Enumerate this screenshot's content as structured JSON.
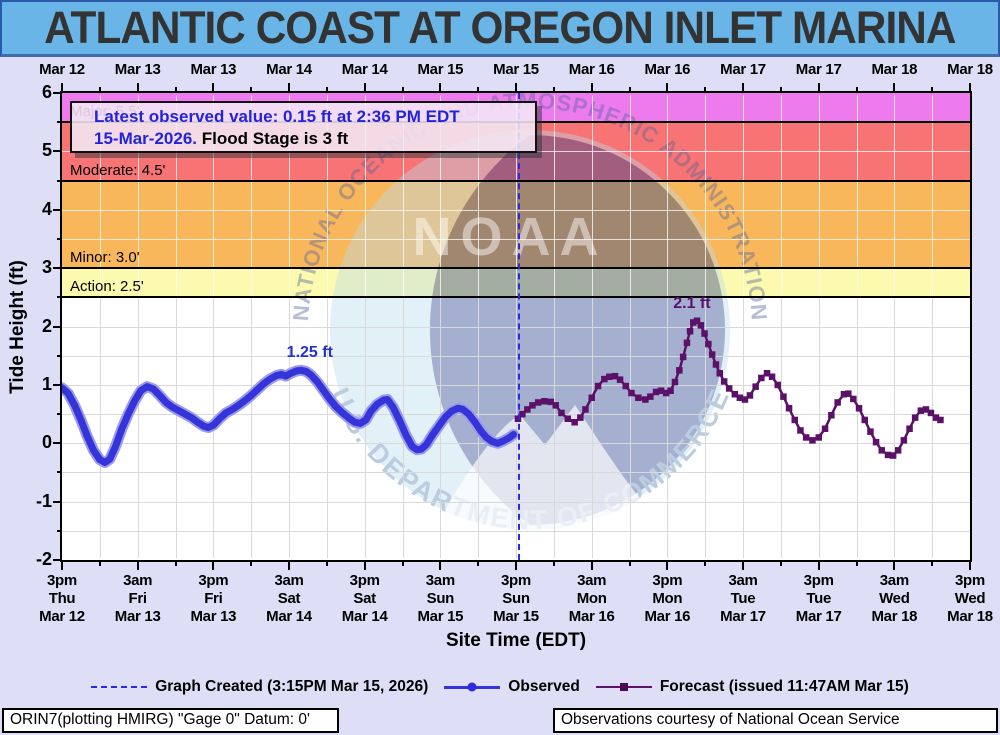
{
  "title": "ATLANTIC COAST AT OREGON INLET MARINA",
  "info_box": {
    "line1": "Latest observed value: 0.15 ft at 2:36 PM EDT",
    "line2_date": "15-Mar-2026.",
    "line2_stage": "Flood Stage is 3 ft"
  },
  "y_axis": {
    "label": "Tide Height (ft)",
    "min": -2,
    "max": 6,
    "ticks": [
      6,
      5,
      4,
      3,
      2,
      1,
      0,
      -1,
      -2
    ]
  },
  "x_axis": {
    "label": "Site Time (EDT)",
    "top_labels": [
      "Mar 12",
      "Mar 13",
      "Mar 13",
      "Mar 14",
      "Mar 14",
      "Mar 15",
      "Mar 15",
      "Mar 16",
      "Mar 16",
      "Mar 17",
      "Mar 17",
      "Mar 18",
      "Mar 18"
    ],
    "bottom_labels": [
      [
        "3pm",
        "Thu",
        "Mar 12"
      ],
      [
        "3am",
        "Fri",
        "Mar 13"
      ],
      [
        "3pm",
        "Fri",
        "Mar 13"
      ],
      [
        "3am",
        "Sat",
        "Mar 14"
      ],
      [
        "3pm",
        "Sat",
        "Mar 14"
      ],
      [
        "3am",
        "Sun",
        "Mar 15"
      ],
      [
        "3pm",
        "Sun",
        "Mar 15"
      ],
      [
        "3am",
        "Mon",
        "Mar 16"
      ],
      [
        "3pm",
        "Mon",
        "Mar 16"
      ],
      [
        "3am",
        "Tue",
        "Mar 17"
      ],
      [
        "3pm",
        "Tue",
        "Mar 17"
      ],
      [
        "3am",
        "Wed",
        "Mar 18"
      ],
      [
        "3pm",
        "Wed",
        "Mar 18"
      ]
    ]
  },
  "flood_bands": [
    {
      "name": "Major",
      "label": "Major: 5.5'",
      "from_ft": 5.5,
      "to_ft": 6.0,
      "color": "#EE7BEE"
    },
    {
      "name": "Moderate",
      "label": "Moderate: 4.5'",
      "from_ft": 4.5,
      "to_ft": 5.5,
      "color": "#F87373"
    },
    {
      "name": "Minor",
      "label": "Minor: 3.0'",
      "from_ft": 3.0,
      "to_ft": 4.5,
      "color": "#F9B75B"
    },
    {
      "name": "Action",
      "label": "Action: 2.5'",
      "from_ft": 2.5,
      "to_ft": 3.0,
      "color": "#FBFAAE"
    }
  ],
  "legend": {
    "items": [
      {
        "type": "created",
        "label": "Graph Created (3:15PM Mar 15, 2026)"
      },
      {
        "type": "observed",
        "label": "Observed"
      },
      {
        "type": "forecast",
        "label": "Forecast (issued 11:47AM Mar 15)"
      }
    ]
  },
  "footer": {
    "left": "ORIN7(plotting HMIRG) \"Gage 0\" Datum: 0'",
    "right": "Observations courtesy of National Ocean Service"
  },
  "watermark": {
    "top_text": "NATIONAL OCEANIC AND ATMOSPHERIC ADMINISTRATION",
    "bottom_text": "U.S. DEPARTMENT OF COMMERCE",
    "center_text": "NOAA"
  },
  "colors": {
    "page_bg": "#DEDEF6",
    "titlebar_bg": "#69B5E7",
    "titlebar_border": "#2B5BA8",
    "observed": "#3434D8",
    "observed_halo": "#9B9BEC",
    "forecast": "#5B1168",
    "created_line": "#2929E8",
    "grid_on_bands": "rgba(255,255,255,0.75)",
    "grid_on_white": "#D9D9D9",
    "info_text_blue": "#2323DC"
  },
  "chart_data": {
    "type": "line",
    "title": "ATLANTIC COAST AT OREGON INLET MARINA",
    "xlabel": "Site Time (EDT)",
    "ylabel": "Tide Height (ft)",
    "ylim": [
      -2,
      6
    ],
    "x_unit": "hours since 3pm EDT Thu Mar 12, 2026",
    "x_range_hours": [
      0,
      144
    ],
    "grid": true,
    "flood_stages": {
      "action": 2.5,
      "minor": 3.0,
      "moderate": 4.5,
      "major": 5.5
    },
    "flood_stage_note": "Flood Stage is 3 ft",
    "latest_observed": {
      "value_ft": 0.15,
      "time": "2:36 PM EDT 15-Mar-2026"
    },
    "created_line_t": 72.25,
    "annotations": [
      {
        "text": "1.25 ft",
        "t": 39.3,
        "v": 1.25,
        "color": "#2233CC"
      },
      {
        "text": "2.1 ft",
        "t": 99.9,
        "v": 2.1,
        "color": "#5A1070"
      }
    ],
    "series": [
      {
        "name": "Observed",
        "color": "#3434D8",
        "marker": "circle",
        "points": [
          [
            0,
            0.95
          ],
          [
            1,
            0.85
          ],
          [
            2,
            0.65
          ],
          [
            3,
            0.4
          ],
          [
            4,
            0.12
          ],
          [
            5,
            -0.12
          ],
          [
            6,
            -0.28
          ],
          [
            6.8,
            -0.33
          ],
          [
            7.6,
            -0.27
          ],
          [
            8.5,
            -0.05
          ],
          [
            9.5,
            0.25
          ],
          [
            10.5,
            0.5
          ],
          [
            11.5,
            0.72
          ],
          [
            12.5,
            0.9
          ],
          [
            13.5,
            0.97
          ],
          [
            14.5,
            0.93
          ],
          [
            15.5,
            0.82
          ],
          [
            16.5,
            0.7
          ],
          [
            17.5,
            0.62
          ],
          [
            18.5,
            0.56
          ],
          [
            19.5,
            0.5
          ],
          [
            20.5,
            0.44
          ],
          [
            21.5,
            0.36
          ],
          [
            22.5,
            0.29
          ],
          [
            23.2,
            0.27
          ],
          [
            24,
            0.31
          ],
          [
            25,
            0.42
          ],
          [
            26,
            0.52
          ],
          [
            27,
            0.58
          ],
          [
            28,
            0.65
          ],
          [
            29,
            0.73
          ],
          [
            30,
            0.82
          ],
          [
            31,
            0.92
          ],
          [
            32,
            1.02
          ],
          [
            33,
            1.1
          ],
          [
            34,
            1.16
          ],
          [
            34.8,
            1.18
          ],
          [
            35.5,
            1.15
          ],
          [
            36.3,
            1.2
          ],
          [
            37.2,
            1.24
          ],
          [
            37.9,
            1.25
          ],
          [
            38.7,
            1.23
          ],
          [
            39.5,
            1.17
          ],
          [
            40.5,
            1.05
          ],
          [
            41.5,
            0.9
          ],
          [
            42.5,
            0.75
          ],
          [
            43.5,
            0.62
          ],
          [
            44.5,
            0.52
          ],
          [
            45.5,
            0.43
          ],
          [
            46.4,
            0.36
          ],
          [
            47.3,
            0.34
          ],
          [
            48.2,
            0.4
          ],
          [
            49,
            0.55
          ],
          [
            50,
            0.67
          ],
          [
            51,
            0.74
          ],
          [
            51.6,
            0.75
          ],
          [
            52.5,
            0.62
          ],
          [
            53.5,
            0.4
          ],
          [
            54.5,
            0.15
          ],
          [
            55.5,
            -0.05
          ],
          [
            56.3,
            -0.11
          ],
          [
            57,
            -0.1
          ],
          [
            57.8,
            -0.02
          ],
          [
            58.8,
            0.15
          ],
          [
            59.8,
            0.3
          ],
          [
            60.8,
            0.45
          ],
          [
            61.8,
            0.55
          ],
          [
            62.8,
            0.6
          ],
          [
            63.6,
            0.58
          ],
          [
            64.5,
            0.5
          ],
          [
            65.5,
            0.36
          ],
          [
            66.5,
            0.2
          ],
          [
            67.3,
            0.1
          ],
          [
            68.2,
            0.03
          ],
          [
            69.1,
            0.0
          ],
          [
            70,
            0.04
          ],
          [
            71,
            0.1
          ],
          [
            71.6,
            0.15
          ]
        ]
      },
      {
        "name": "Forecast",
        "color": "#5B1168",
        "marker": "square",
        "points": [
          [
            72.3,
            0.42
          ],
          [
            73,
            0.5
          ],
          [
            73.8,
            0.58
          ],
          [
            74.6,
            0.65
          ],
          [
            75.5,
            0.7
          ],
          [
            76.5,
            0.72
          ],
          [
            77.5,
            0.71
          ],
          [
            78.3,
            0.65
          ],
          [
            79.2,
            0.52
          ],
          [
            80.2,
            0.42
          ],
          [
            81.3,
            0.36
          ],
          [
            82.2,
            0.44
          ],
          [
            83,
            0.58
          ],
          [
            84,
            0.78
          ],
          [
            85,
            0.98
          ],
          [
            86,
            1.1
          ],
          [
            86.8,
            1.14
          ],
          [
            87.7,
            1.15
          ],
          [
            88.5,
            1.09
          ],
          [
            89.4,
            0.98
          ],
          [
            90.3,
            0.86
          ],
          [
            91.4,
            0.78
          ],
          [
            92.5,
            0.75
          ],
          [
            93.3,
            0.8
          ],
          [
            94.2,
            0.88
          ],
          [
            95,
            0.9
          ],
          [
            95.8,
            0.86
          ],
          [
            96.5,
            0.9
          ],
          [
            97.2,
            1.05
          ],
          [
            97.9,
            1.25
          ],
          [
            98.5,
            1.48
          ],
          [
            99.1,
            1.72
          ],
          [
            99.6,
            1.92
          ],
          [
            100.1,
            2.07
          ],
          [
            100.7,
            2.1
          ],
          [
            101.3,
            2.02
          ],
          [
            101.9,
            1.88
          ],
          [
            102.5,
            1.7
          ],
          [
            103.1,
            1.52
          ],
          [
            103.7,
            1.35
          ],
          [
            104.3,
            1.2
          ],
          [
            105,
            1.06
          ],
          [
            105.8,
            0.94
          ],
          [
            106.7,
            0.84
          ],
          [
            107.5,
            0.78
          ],
          [
            108.3,
            0.75
          ],
          [
            109.1,
            0.82
          ],
          [
            110,
            0.97
          ],
          [
            110.9,
            1.12
          ],
          [
            111.8,
            1.2
          ],
          [
            112.6,
            1.14
          ],
          [
            113.5,
            1.0
          ],
          [
            114.4,
            0.8
          ],
          [
            115.3,
            0.6
          ],
          [
            116.2,
            0.4
          ],
          [
            117.1,
            0.22
          ],
          [
            118,
            0.1
          ],
          [
            119,
            0.05
          ],
          [
            120,
            0.1
          ],
          [
            121,
            0.25
          ],
          [
            122,
            0.48
          ],
          [
            123,
            0.7
          ],
          [
            124,
            0.84
          ],
          [
            124.7,
            0.85
          ],
          [
            125.5,
            0.76
          ],
          [
            126.4,
            0.6
          ],
          [
            127.3,
            0.4
          ],
          [
            128.2,
            0.2
          ],
          [
            129.1,
            0.02
          ],
          [
            130,
            -0.12
          ],
          [
            131,
            -0.2
          ],
          [
            131.8,
            -0.21
          ],
          [
            132.6,
            -0.12
          ],
          [
            133.5,
            0.05
          ],
          [
            134.4,
            0.25
          ],
          [
            135.3,
            0.44
          ],
          [
            136.2,
            0.56
          ],
          [
            137,
            0.58
          ],
          [
            137.8,
            0.52
          ],
          [
            138.6,
            0.44
          ],
          [
            139.3,
            0.4
          ]
        ]
      }
    ]
  }
}
